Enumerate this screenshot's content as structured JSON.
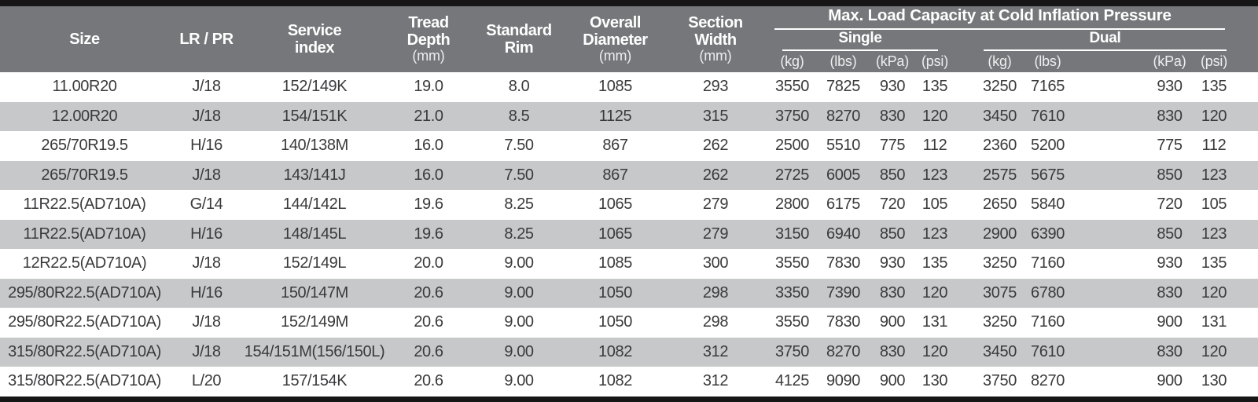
{
  "header": {
    "size": "Size",
    "lr_pr": "LR / PR",
    "service_index": [
      "Service",
      "index"
    ],
    "tread_depth": [
      "Tread",
      "Depth",
      "(mm)"
    ],
    "standard_rim": [
      "Standard",
      "Rim"
    ],
    "overall_diameter": [
      "Overall",
      "Diameter",
      "(mm)"
    ],
    "section_width": [
      "Section",
      "Width",
      "(mm)"
    ],
    "max_load_title": "Max. Load Capacity at Cold Inflation Pressure",
    "single_label": "Single",
    "dual_label": "Dual",
    "unit_headers": [
      "(kg)",
      "(lbs)",
      "(kPa)",
      "(psi)"
    ]
  },
  "colors": {
    "header_bg": "#75777a",
    "row_alt_bg": "#c7c8c9",
    "border_bar": "#161616",
    "body_text": "#3a3a3c",
    "header_text": "#ffffff"
  },
  "chart_data": {
    "type": "table",
    "title": "Max. Load Capacity at Cold Inflation Pressure",
    "column_groups": [
      {
        "label": "Single",
        "columns": [
          "(kg)",
          "(lbs)",
          "(kPa)",
          "(psi)"
        ]
      },
      {
        "label": "Dual",
        "columns": [
          "(kg)",
          "(lbs)",
          "(kPa)",
          "(psi)"
        ]
      }
    ],
    "columns": [
      "Size",
      "LR / PR",
      "Service index",
      "Tread Depth (mm)",
      "Standard Rim",
      "Overall Diameter (mm)",
      "Section Width (mm)",
      "Single (kg)",
      "Single (lbs)",
      "Single (kPa)",
      "Single (psi)",
      "Dual (kg)",
      "Dual (lbs)",
      "Dual (kPa)",
      "Dual (psi)"
    ],
    "rows": [
      [
        "11.00R20",
        "J/18",
        "152/149K",
        "19.0",
        "8.0",
        "1085",
        "293",
        "3550",
        "7825",
        "930",
        "135",
        "3250",
        "7165",
        "930",
        "135"
      ],
      [
        "12.00R20",
        "J/18",
        "154/151K",
        "21.0",
        "8.5",
        "1125",
        "315",
        "3750",
        "8270",
        "830",
        "120",
        "3450",
        "7610",
        "830",
        "120"
      ],
      [
        "265/70R19.5",
        "H/16",
        "140/138M",
        "16.0",
        "7.50",
        "867",
        "262",
        "2500",
        "5510",
        "775",
        "112",
        "2360",
        "5200",
        "775",
        "112"
      ],
      [
        "265/70R19.5",
        "J/18",
        "143/141J",
        "16.0",
        "7.50",
        "867",
        "262",
        "2725",
        "6005",
        "850",
        "123",
        "2575",
        "5675",
        "850",
        "123"
      ],
      [
        "11R22.5(AD710A)",
        "G/14",
        "144/142L",
        "19.6",
        "8.25",
        "1065",
        "279",
        "2800",
        "6175",
        "720",
        "105",
        "2650",
        "5840",
        "720",
        "105"
      ],
      [
        "11R22.5(AD710A)",
        "H/16",
        "148/145L",
        "19.6",
        "8.25",
        "1065",
        "279",
        "3150",
        "6940",
        "850",
        "123",
        "2900",
        "6390",
        "850",
        "123"
      ],
      [
        "12R22.5(AD710A)",
        "J/18",
        "152/149L",
        "20.0",
        "9.00",
        "1085",
        "300",
        "3550",
        "7830",
        "930",
        "135",
        "3250",
        "7160",
        "930",
        "135"
      ],
      [
        "295/80R22.5(AD710A)",
        "H/16",
        "150/147M",
        "20.6",
        "9.00",
        "1050",
        "298",
        "3350",
        "7390",
        "830",
        "120",
        "3075",
        "6780",
        "830",
        "120"
      ],
      [
        "295/80R22.5(AD710A)",
        "J/18",
        "152/149M",
        "20.6",
        "9.00",
        "1050",
        "298",
        "3550",
        "7830",
        "900",
        "131",
        "3250",
        "7160",
        "900",
        "131"
      ],
      [
        "315/80R22.5(AD710A)",
        "J/18",
        "154/151M(156/150L)",
        "20.6",
        "9.00",
        "1082",
        "312",
        "3750",
        "8270",
        "830",
        "120",
        "3450",
        "7610",
        "830",
        "120"
      ],
      [
        "315/80R22.5(AD710A)",
        "L/20",
        "157/154K",
        "20.6",
        "9.00",
        "1082",
        "312",
        "4125",
        "9090",
        "900",
        "130",
        "3750",
        "8270",
        "900",
        "130"
      ]
    ]
  }
}
